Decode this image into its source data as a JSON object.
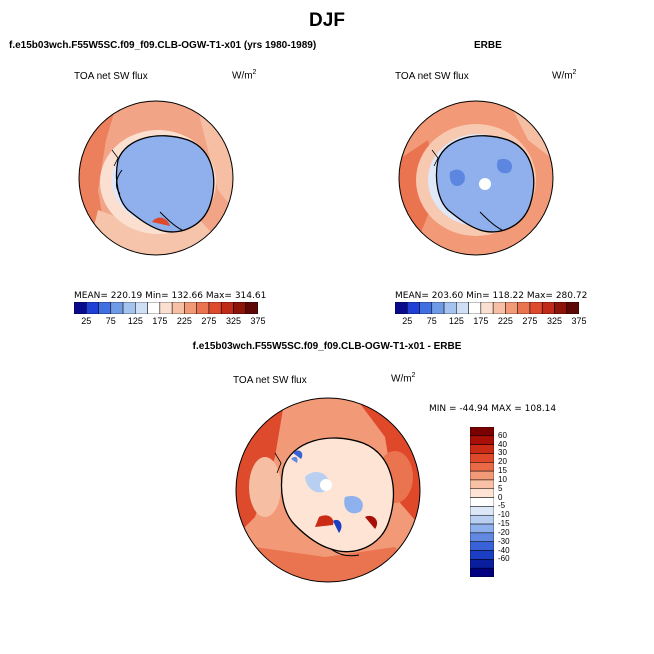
{
  "title": "DJF",
  "panels": {
    "model": {
      "header": "f.e15b03wch.F55W5SC.f09_f09.CLB-OGW-T1-x01 (yrs 1980-1989)",
      "variable": "TOA net SW flux",
      "units": "W/m",
      "units_exp": "2",
      "stats": "MEAN= 220.19   Min= 132.66   Max= 314.61"
    },
    "obs": {
      "header": "ERBE",
      "variable": "TOA net SW flux",
      "units": "W/m",
      "units_exp": "2",
      "stats": "MEAN= 203.60   Min= 118.22   Max= 280.72"
    },
    "diff": {
      "header": "f.e15b03wch.F55W5SC.f09_f09.CLB-OGW-T1-x01 - ERBE",
      "variable": "TOA net SW flux",
      "units": "W/m",
      "units_exp": "2",
      "stats": "MIN = -44.94 MAX = 108.14"
    }
  },
  "horizontal_colorbar": {
    "labels": [
      "25",
      "75",
      "125",
      "175",
      "225",
      "275",
      "325",
      "375"
    ],
    "colors": [
      "#0a0a8c",
      "#1f3fd6",
      "#3f6fe0",
      "#6f9ae6",
      "#a5c3ef",
      "#cfe0f6",
      "#ffffff",
      "#fbe0d2",
      "#f7c0a4",
      "#f29a78",
      "#ea7450",
      "#dd4a2c",
      "#c02a18",
      "#8e140a",
      "#5e0806"
    ]
  },
  "vertical_colorbar": {
    "labels": [
      "60",
      "40",
      "30",
      "20",
      "15",
      "10",
      "5",
      "0",
      "-5",
      "-10",
      "-15",
      "-20",
      "-30",
      "-40",
      "-60"
    ],
    "colors": [
      "#7a0000",
      "#a80f06",
      "#cb2a14",
      "#e0482a",
      "#ea6a48",
      "#f29a78",
      "#f8c0a4",
      "#fde4d4",
      "#ffffff",
      "#dce8f8",
      "#b8cff2",
      "#8eb0ec",
      "#6288e2",
      "#3a62d8",
      "#1a3ec4",
      "#0a1f9e",
      "#000080"
    ]
  }
}
